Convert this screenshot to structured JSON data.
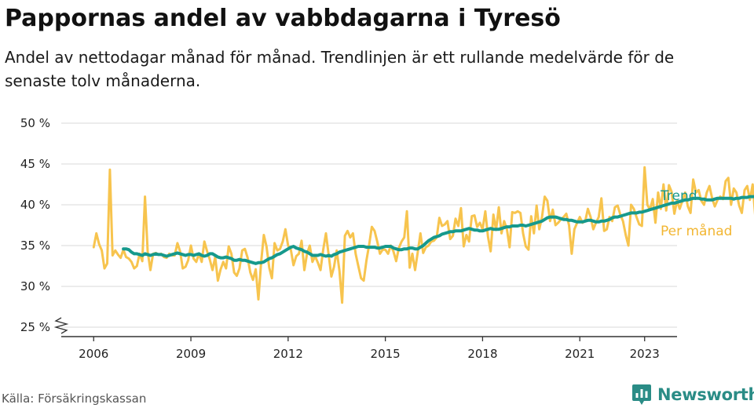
{
  "title": "Pappornas andel av vabbdagarna i Tyresö",
  "subtitle": "Andel av nettodagar månad för månad. Trendlinjen är ett rullande medelvärde för de senaste tolv månaderna.",
  "source": "Källa: Försäkringskassan",
  "brand": {
    "name": "Newsworthy",
    "icon": "newsworthy-logo-icon"
  },
  "colors": {
    "trend": "#16998c",
    "monthly": "#f7c44e",
    "grid": "#d8d8d8",
    "axis": "#333333",
    "brand": "#2a8c86"
  },
  "chart_data": {
    "type": "line",
    "title": "Pappornas andel av vabbdagarna i Tyresö",
    "xlabel": "",
    "ylabel": "",
    "ylim": [
      25,
      50
    ],
    "xlim": [
      "2005-01",
      "2024-01"
    ],
    "y_ticks": [
      25,
      30,
      35,
      40,
      45,
      50
    ],
    "y_tick_labels": [
      "25 %",
      "30 %",
      "35 %",
      "40 %",
      "45 %",
      "50 %"
    ],
    "x_ticks": [
      "2006-01",
      "2009-01",
      "2012-01",
      "2015-01",
      "2018-01",
      "2021-01",
      "2023-01"
    ],
    "x_tick_labels": [
      "2006",
      "2009",
      "2012",
      "2015",
      "2018",
      "2021",
      "2023"
    ],
    "grid": true,
    "y_axis_break": true,
    "legend": "labels at right end of lines",
    "series": [
      {
        "name": "Per månad",
        "color": "#f7c44e",
        "start": "2006-01",
        "values": [
          34.8,
          36.5,
          35.2,
          34.4,
          32.2,
          32.8,
          44.3,
          33.8,
          34.4,
          33.9,
          33.5,
          34.5,
          33.6,
          33.4,
          33.0,
          32.2,
          32.5,
          34.0,
          33.1,
          41.0,
          34.3,
          32.0,
          34.0,
          34.1,
          33.9,
          34.0,
          33.6,
          33.5,
          34.0,
          33.8,
          33.8,
          35.3,
          34.3,
          32.2,
          32.4,
          33.2,
          35.0,
          33.4,
          33.0,
          34.0,
          33.0,
          35.5,
          34.3,
          33.3,
          32.0,
          33.6,
          30.7,
          32.1,
          33.0,
          32.2,
          34.9,
          34.0,
          31.7,
          31.3,
          32.2,
          34.4,
          34.6,
          33.5,
          31.7,
          30.8,
          32.1,
          28.4,
          33.0,
          36.3,
          34.9,
          32.3,
          31.0,
          35.3,
          34.4,
          34.6,
          35.5,
          37.0,
          35.0,
          34.5,
          32.6,
          33.7,
          34.0,
          35.6,
          32.0,
          34.0,
          35.0,
          33.0,
          33.7,
          32.9,
          32.0,
          34.5,
          36.5,
          33.9,
          31.2,
          32.4,
          34.4,
          31.9,
          28.0,
          36.2,
          36.8,
          36.0,
          36.5,
          34.0,
          32.5,
          31.0,
          30.7,
          33.2,
          35.1,
          37.3,
          36.8,
          35.5,
          34.0,
          34.5,
          34.5,
          34.0,
          35.0,
          34.3,
          33.1,
          34.7,
          35.5,
          36.0,
          39.2,
          32.3,
          34.0,
          32.0,
          34.2,
          36.5,
          34.1,
          34.8,
          35.0,
          35.5,
          35.6,
          36.0,
          38.4,
          37.4,
          37.6,
          38.0,
          35.8,
          36.2,
          38.3,
          37.4,
          39.6,
          34.9,
          36.3,
          35.5,
          38.6,
          38.7,
          37.3,
          37.8,
          37.0,
          39.2,
          36.1,
          34.3,
          38.8,
          36.9,
          39.7,
          36.5,
          38.0,
          37.0,
          34.8,
          39.1,
          39.0,
          39.2,
          39.0,
          36.5,
          34.9,
          34.5,
          38.6,
          36.5,
          39.9,
          37.0,
          38.5,
          41.0,
          40.5,
          38.0,
          39.4,
          37.5,
          37.8,
          38.2,
          38.5,
          38.9,
          37.5,
          34.0,
          37.0,
          37.8,
          38.5,
          37.8,
          38.0,
          39.5,
          38.5,
          37.0,
          37.8,
          38.5,
          40.8,
          36.8,
          37.0,
          38.5,
          38.0,
          39.7,
          39.9,
          38.8,
          38.0,
          36.3,
          35.0,
          40.0,
          39.5,
          38.5,
          37.6,
          37.4,
          44.6,
          40.0,
          39.4,
          40.7,
          37.8,
          41.5,
          39.5,
          42.5,
          39.3,
          42.4,
          41.6,
          38.9,
          40.5,
          39.5,
          40.5,
          41.5,
          39.8,
          39.0,
          43.1,
          41.5,
          41.8,
          40.5,
          40.0,
          41.5,
          42.3,
          40.8,
          39.8,
          40.6,
          41.0,
          40.7,
          42.9,
          43.3,
          40.0,
          42.0,
          41.5,
          39.9,
          39.0,
          41.8,
          42.3,
          40.6,
          42.5,
          38.5,
          36.5
        ]
      },
      {
        "name": "Trend",
        "color": "#16998c",
        "start": "2006-12",
        "values": [
          34.6,
          34.6,
          34.5,
          34.2,
          34.0,
          34.0,
          33.9,
          33.8,
          34.0,
          33.9,
          33.8,
          33.9,
          34.0,
          33.9,
          33.9,
          33.8,
          33.7,
          33.8,
          33.9,
          34.0,
          34.1,
          34.0,
          33.9,
          33.8,
          33.9,
          33.9,
          33.8,
          33.9,
          34.0,
          33.8,
          33.7,
          33.8,
          34.0,
          34.0,
          33.8,
          33.6,
          33.5,
          33.5,
          33.6,
          33.5,
          33.4,
          33.2,
          33.2,
          33.3,
          33.2,
          33.2,
          33.1,
          33.0,
          32.9,
          32.8,
          32.9,
          32.9,
          33.0,
          33.2,
          33.4,
          33.5,
          33.7,
          33.9,
          34.0,
          34.2,
          34.4,
          34.6,
          34.8,
          34.9,
          34.7,
          34.6,
          34.5,
          34.3,
          34.2,
          34.0,
          33.8,
          33.8,
          33.8,
          33.9,
          33.8,
          33.7,
          33.8,
          33.7,
          33.9,
          34.0,
          34.2,
          34.3,
          34.4,
          34.5,
          34.6,
          34.7,
          34.8,
          34.9,
          34.9,
          34.9,
          34.8,
          34.8,
          34.8,
          34.8,
          34.7,
          34.7,
          34.8,
          34.9,
          34.9,
          34.9,
          34.7,
          34.6,
          34.5,
          34.5,
          34.6,
          34.6,
          34.7,
          34.7,
          34.6,
          34.6,
          34.8,
          35.0,
          35.3,
          35.6,
          35.8,
          36.0,
          36.1,
          36.2,
          36.4,
          36.5,
          36.6,
          36.7,
          36.7,
          36.8,
          36.8,
          36.8,
          36.9,
          37.0,
          37.1,
          37.0,
          36.9,
          36.9,
          36.8,
          36.8,
          36.9,
          37.0,
          37.1,
          37.0,
          37.0,
          37.0,
          37.1,
          37.2,
          37.3,
          37.3,
          37.4,
          37.4,
          37.4,
          37.5,
          37.5,
          37.4,
          37.5,
          37.6,
          37.7,
          37.8,
          37.9,
          38.0,
          38.2,
          38.4,
          38.5,
          38.5,
          38.5,
          38.4,
          38.3,
          38.2,
          38.2,
          38.1,
          38.1,
          38.0,
          37.9,
          37.9,
          37.9,
          38.0,
          38.1,
          38.1,
          38.0,
          37.9,
          37.9,
          38.0,
          38.0,
          38.1,
          38.2,
          38.4,
          38.5,
          38.5,
          38.6,
          38.7,
          38.8,
          38.9,
          39.0,
          39.0,
          39.0,
          39.1,
          39.1,
          39.2,
          39.3,
          39.4,
          39.5,
          39.6,
          39.7,
          39.8,
          39.9,
          40.0,
          40.1,
          40.2,
          40.2,
          40.3,
          40.4,
          40.5,
          40.6,
          40.6,
          40.7,
          40.8,
          40.8,
          40.8,
          40.7,
          40.7,
          40.6,
          40.6,
          40.6,
          40.7,
          40.8,
          40.8,
          40.8,
          40.8,
          40.8,
          40.8,
          40.7,
          40.8,
          40.8,
          40.9,
          40.9,
          40.9,
          41.0,
          41.0,
          41.0,
          41.0,
          41.0,
          41.0,
          41.0
        ]
      }
    ]
  }
}
